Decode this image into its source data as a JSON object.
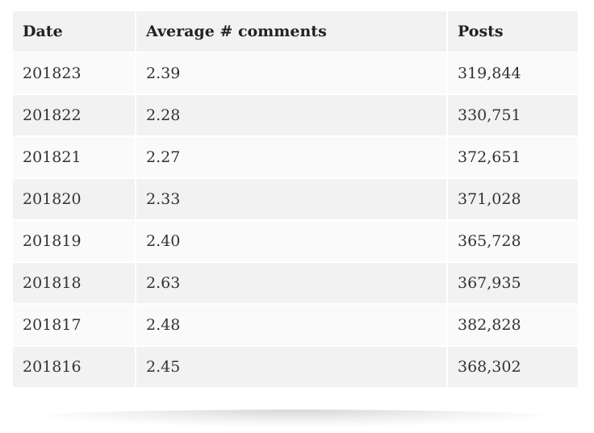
{
  "table": {
    "headers": [
      "Date",
      "Average # comments",
      "Posts"
    ],
    "rows": [
      [
        "201823",
        "2.39",
        "319,844"
      ],
      [
        "201822",
        "2.28",
        "330,751"
      ],
      [
        "201821",
        "2.27",
        "372,651"
      ],
      [
        "201820",
        "2.33",
        "371,028"
      ],
      [
        "201819",
        "2.40",
        "365,728"
      ],
      [
        "201818",
        "2.63",
        "367,935"
      ],
      [
        "201817",
        "2.48",
        "382,828"
      ],
      [
        "201816",
        "2.45",
        "368,302"
      ]
    ]
  }
}
